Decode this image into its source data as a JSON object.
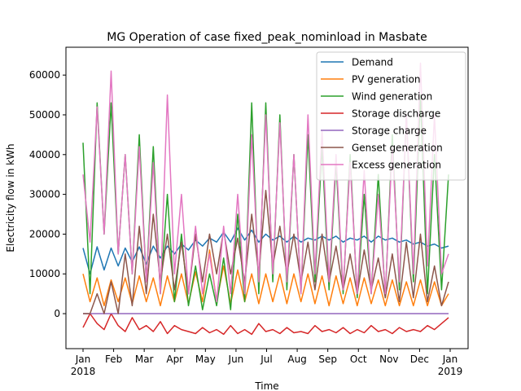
{
  "chart_data": {
    "type": "line",
    "title": "MG Operation of case fixed_peak_nominload in Masbate",
    "x_label": "Time",
    "y_label": "Electricity flow in kWh",
    "xlim": [
      "2018-01",
      "2019-01"
    ],
    "xticks": [
      {
        "value": "2018-01",
        "label": "Jan\n2018"
      },
      {
        "value": "2018-02",
        "label": "Feb"
      },
      {
        "value": "2018-03",
        "label": "Mar"
      },
      {
        "value": "2018-04",
        "label": "Apr"
      },
      {
        "value": "2018-05",
        "label": "May"
      },
      {
        "value": "2018-06",
        "label": "Jun"
      },
      {
        "value": "2018-07",
        "label": "Jul"
      },
      {
        "value": "2018-08",
        "label": "Aug"
      },
      {
        "value": "2018-09",
        "label": "Sep"
      },
      {
        "value": "2018-10",
        "label": "Oct"
      },
      {
        "value": "2018-11",
        "label": "Nov"
      },
      {
        "value": "2018-12",
        "label": "Dec"
      },
      {
        "value": "2019-01",
        "label": "Jan\n2019"
      }
    ],
    "ylim": [
      -8800,
      67000
    ],
    "yticks": [
      0,
      10000,
      20000,
      30000,
      40000,
      50000,
      60000
    ],
    "legend": "upper right",
    "series": [
      {
        "name": "Demand",
        "color": "#1f77b4",
        "values": [
          16500,
          10000,
          16800,
          11000,
          16500,
          12000,
          16500,
          13000,
          16800,
          12500,
          17000,
          14000,
          17000,
          15000,
          17500,
          16000,
          18500,
          17000,
          19000,
          18000,
          20500,
          18000,
          21500,
          18500,
          21000,
          18000,
          20000,
          18500,
          19500,
          18000,
          19500,
          18000,
          19000,
          18500,
          19500,
          18500,
          19500,
          18000,
          19000,
          18500,
          19500,
          18000,
          19500,
          18500,
          19000,
          18000,
          18500,
          17500,
          18000,
          17000,
          17500,
          16500,
          17000
        ]
      },
      {
        "name": "PV generation",
        "color": "#ff7f0e",
        "values": [
          10000,
          3000,
          9000,
          2000,
          8500,
          3000,
          9000,
          2500,
          9500,
          3000,
          9000,
          2000,
          9500,
          3000,
          10000,
          2500,
          10500,
          3000,
          16000,
          3000,
          12000,
          2500,
          11000,
          3000,
          10000,
          2500,
          10000,
          3000,
          10000,
          2500,
          10000,
          3000,
          10000,
          2500,
          9500,
          2000,
          9500,
          2500,
          9000,
          2000,
          9000,
          2500,
          8500,
          2000,
          8500,
          2000,
          8000,
          2000,
          8500,
          2000,
          8000,
          2000,
          5000
        ]
      },
      {
        "name": "Wind generation",
        "color": "#2ca02c",
        "values": [
          43000,
          5000,
          53000,
          20000,
          53000,
          15000,
          40000,
          10000,
          45000,
          8000,
          42000,
          5000,
          30000,
          3000,
          20000,
          2000,
          12000,
          1000,
          10000,
          2000,
          14000,
          1000,
          25000,
          3000,
          53000,
          5000,
          53000,
          8000,
          50000,
          6000,
          40000,
          5000,
          45000,
          8000,
          42000,
          6000,
          38000,
          5000,
          40000,
          4000,
          30000,
          5000,
          35000,
          4000,
          45000,
          6000,
          50000,
          8000,
          55000,
          5000,
          40000,
          6000,
          35000
        ]
      },
      {
        "name": "Storage discharge",
        "color": "#d62728",
        "values": [
          -3500,
          0,
          -2500,
          -4000,
          0,
          -3000,
          -4500,
          -1000,
          -4000,
          -3000,
          -4500,
          -2000,
          -5000,
          -3000,
          -4000,
          -4500,
          -5000,
          -3500,
          -4800,
          -4000,
          -5200,
          -3000,
          -5000,
          -4000,
          -5200,
          -2500,
          -4500,
          -4000,
          -5000,
          -3500,
          -4800,
          -4500,
          -5000,
          -3000,
          -4500,
          -4000,
          -4800,
          -3500,
          -5000,
          -4000,
          -4800,
          -3000,
          -4500,
          -4000,
          -5000,
          -3500,
          -4500,
          -4000,
          -4500,
          -3000,
          -4000,
          -2500,
          -1000
        ]
      },
      {
        "name": "Storage charge",
        "color": "#9467bd",
        "values": [
          0,
          0,
          0,
          0,
          0,
          0,
          0,
          0,
          0,
          0,
          0,
          0,
          0,
          0,
          0,
          0,
          0,
          0,
          0,
          0,
          0,
          0,
          0,
          0,
          0,
          0,
          0,
          0,
          0,
          0,
          0,
          0,
          0,
          0,
          0,
          0,
          0,
          0,
          0,
          0,
          0,
          0,
          0,
          0,
          0,
          0,
          0,
          0,
          0,
          0,
          0,
          0,
          0
        ]
      },
      {
        "name": "Genset generation",
        "color": "#8c564b",
        "values": [
          0,
          0,
          5000,
          0,
          8000,
          0,
          15000,
          2000,
          22000,
          5000,
          25000,
          8000,
          20000,
          6000,
          18000,
          5000,
          20000,
          8000,
          20000,
          10000,
          21000,
          10000,
          19000,
          8000,
          25000,
          10000,
          31000,
          12000,
          22000,
          10000,
          20000,
          8000,
          18000,
          6000,
          20000,
          8000,
          17000,
          6000,
          15000,
          5000,
          16000,
          6000,
          14000,
          4000,
          15000,
          3000,
          18000,
          4000,
          20000,
          3000,
          12000,
          2000,
          8000
        ]
      },
      {
        "name": "Excess generation",
        "color": "#e377c2",
        "values": [
          35000,
          18000,
          52000,
          20000,
          61000,
          15000,
          40000,
          10000,
          42000,
          8000,
          38000,
          5000,
          55000,
          10000,
          30000,
          5000,
          22000,
          5000,
          15000,
          3000,
          22000,
          5000,
          30000,
          5000,
          45000,
          8000,
          50000,
          10000,
          48000,
          8000,
          40000,
          5000,
          50000,
          10000,
          46000,
          8000,
          40000,
          6000,
          38000,
          5000,
          36000,
          5000,
          30000,
          5000,
          42000,
          8000,
          50000,
          10000,
          63000,
          12000,
          50000,
          10000,
          15000
        ]
      }
    ]
  }
}
